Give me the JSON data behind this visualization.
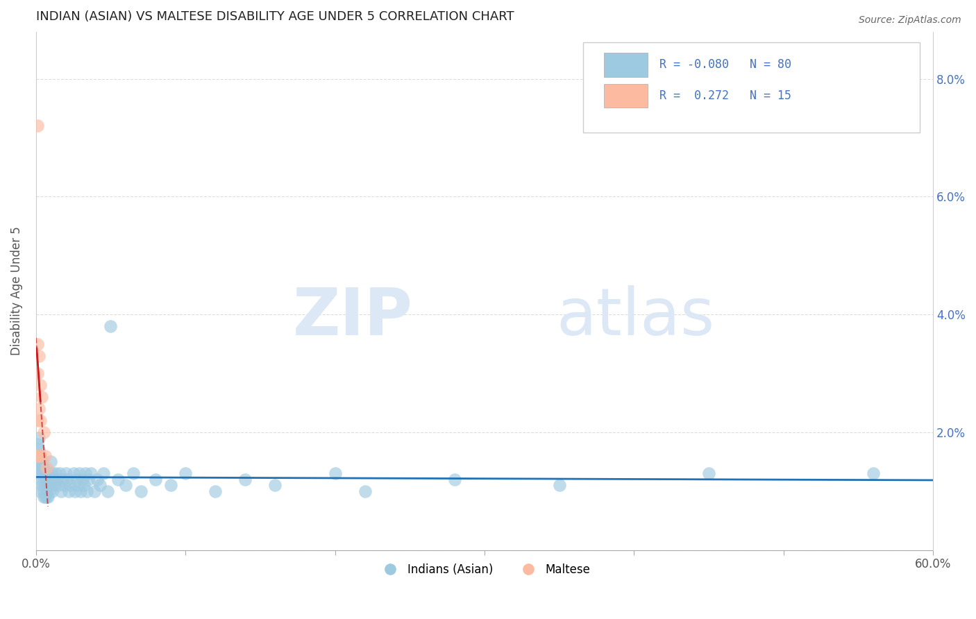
{
  "title": "INDIAN (ASIAN) VS MALTESE DISABILITY AGE UNDER 5 CORRELATION CHART",
  "source": "Source: ZipAtlas.com",
  "ylabel": "Disability Age Under 5",
  "xlim": [
    0.0,
    0.6
  ],
  "ylim": [
    0.0,
    0.088
  ],
  "xticks": [
    0.0,
    0.1,
    0.2,
    0.3,
    0.4,
    0.5,
    0.6
  ],
  "xticklabels": [
    "0.0%",
    "",
    "",
    "",
    "",
    "",
    "60.0%"
  ],
  "yticks": [
    0.0,
    0.02,
    0.04,
    0.06,
    0.08
  ],
  "yticklabels_right": [
    "",
    "2.0%",
    "4.0%",
    "6.0%",
    "8.0%"
  ],
  "blue_color": "#9ecae1",
  "pink_color": "#fcbba1",
  "trend_blue": "#2171b5",
  "trend_pink": "#cb181d",
  "R_blue": -0.08,
  "N_blue": 80,
  "R_pink": 0.272,
  "N_pink": 15,
  "legend_label_blue": "Indians (Asian)",
  "legend_label_pink": "Maltese",
  "watermark_zip": "ZIP",
  "watermark_atlas": "atlas",
  "indian_x": [
    0.001,
    0.001,
    0.001,
    0.002,
    0.002,
    0.002,
    0.002,
    0.003,
    0.003,
    0.003,
    0.003,
    0.004,
    0.004,
    0.004,
    0.005,
    0.005,
    0.005,
    0.005,
    0.006,
    0.006,
    0.006,
    0.007,
    0.007,
    0.007,
    0.008,
    0.008,
    0.008,
    0.009,
    0.009,
    0.01,
    0.01,
    0.011,
    0.011,
    0.012,
    0.012,
    0.013,
    0.014,
    0.015,
    0.016,
    0.017,
    0.018,
    0.019,
    0.02,
    0.021,
    0.022,
    0.023,
    0.025,
    0.026,
    0.027,
    0.028,
    0.029,
    0.03,
    0.031,
    0.032,
    0.033,
    0.034,
    0.035,
    0.037,
    0.039,
    0.041,
    0.043,
    0.045,
    0.048,
    0.05,
    0.055,
    0.06,
    0.065,
    0.07,
    0.08,
    0.09,
    0.1,
    0.12,
    0.14,
    0.16,
    0.2,
    0.22,
    0.28,
    0.35,
    0.45,
    0.56
  ],
  "indian_y": [
    0.018,
    0.016,
    0.014,
    0.019,
    0.017,
    0.015,
    0.013,
    0.016,
    0.014,
    0.012,
    0.01,
    0.015,
    0.013,
    0.011,
    0.014,
    0.012,
    0.01,
    0.009,
    0.013,
    0.011,
    0.009,
    0.012,
    0.01,
    0.009,
    0.011,
    0.013,
    0.009,
    0.01,
    0.012,
    0.015,
    0.011,
    0.013,
    0.01,
    0.012,
    0.011,
    0.013,
    0.012,
    0.011,
    0.013,
    0.01,
    0.012,
    0.011,
    0.013,
    0.012,
    0.01,
    0.011,
    0.013,
    0.01,
    0.012,
    0.011,
    0.013,
    0.01,
    0.012,
    0.011,
    0.013,
    0.01,
    0.012,
    0.013,
    0.01,
    0.012,
    0.011,
    0.013,
    0.01,
    0.038,
    0.012,
    0.011,
    0.013,
    0.01,
    0.012,
    0.011,
    0.013,
    0.01,
    0.012,
    0.011,
    0.013,
    0.01,
    0.012,
    0.011,
    0.013,
    0.013
  ],
  "maltese_x": [
    0.001,
    0.001,
    0.001,
    0.001,
    0.001,
    0.002,
    0.002,
    0.002,
    0.003,
    0.003,
    0.003,
    0.004,
    0.005,
    0.006,
    0.007
  ],
  "maltese_y": [
    0.072,
    0.035,
    0.03,
    0.022,
    0.016,
    0.033,
    0.024,
    0.016,
    0.028,
    0.022,
    0.016,
    0.026,
    0.02,
    0.016,
    0.014
  ]
}
